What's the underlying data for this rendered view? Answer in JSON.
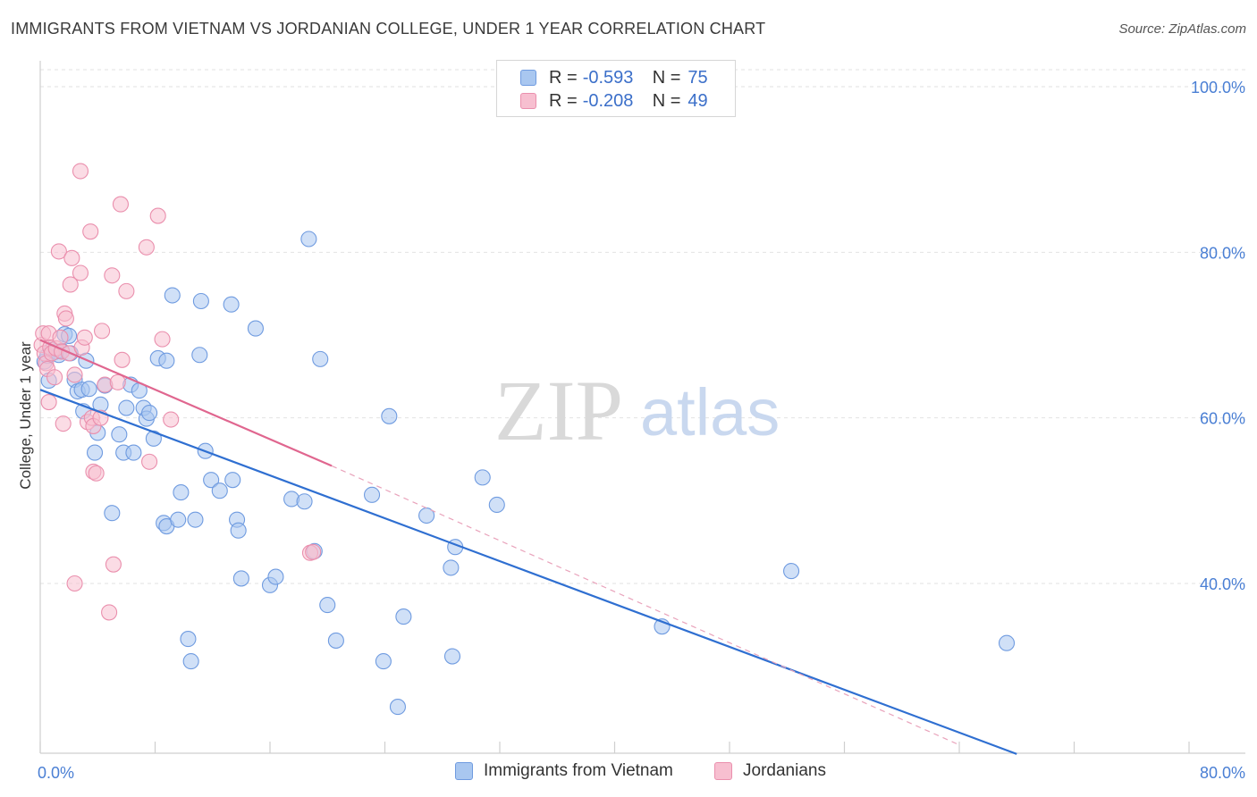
{
  "header": {
    "title": "IMMIGRANTS FROM VIETNAM VS JORDANIAN COLLEGE, UNDER 1 YEAR CORRELATION CHART",
    "source": "Source: ZipAtlas.com"
  },
  "watermark": {
    "zip": "ZIP",
    "atlas": "atlas"
  },
  "legend": {
    "rows": [
      {
        "r_label": "R =",
        "r_value": "-0.593",
        "n_label": "N =",
        "n_value": "75",
        "color": "#a9c7f0",
        "border": "#6f9be0"
      },
      {
        "r_label": "R =",
        "r_value": "-0.208",
        "n_label": "N =",
        "n_value": "49",
        "color": "#f7bfd0",
        "border": "#ea8fad"
      }
    ]
  },
  "bottom_legend": {
    "items": [
      {
        "label": "Immigrants from Vietnam",
        "color": "#a9c7f0",
        "border": "#6f9be0"
      },
      {
        "label": "Jordanians",
        "color": "#f7bfd0",
        "border": "#ea8fad"
      }
    ]
  },
  "chart_data": {
    "type": "scatter",
    "title": "IMMIGRANTS FROM VIETNAM VS JORDANIAN COLLEGE, UNDER 1 YEAR CORRELATION CHART",
    "xlabel": "",
    "ylabel": "College, Under 1 year",
    "xlim": [
      0,
      80
    ],
    "ylim": [
      20,
      104
    ],
    "x_tick_labels": [
      "0.0%",
      "80.0%"
    ],
    "y_ticks": [
      40,
      60,
      80,
      100
    ],
    "y_tick_labels": [
      "40.0%",
      "60.0%",
      "80.0%",
      "100.0%"
    ],
    "grid": true,
    "legend_position": "top-center",
    "colors": {
      "vietnam": "#6f9be0",
      "vietnam_line": "#2f6fd1",
      "jordan": "#ea8fad",
      "jordan_line": "#e0668f"
    },
    "series": [
      {
        "name": "Immigrants from Vietnam",
        "points": [
          [
            0.3,
            66.8
          ],
          [
            0.5,
            67.5
          ],
          [
            0.6,
            64.5
          ],
          [
            0.8,
            68.2
          ],
          [
            1.1,
            68.0
          ],
          [
            1.3,
            67.6
          ],
          [
            1.5,
            68.1
          ],
          [
            1.7,
            70.1
          ],
          [
            2.0,
            69.9
          ],
          [
            2.1,
            67.8
          ],
          [
            2.4,
            64.6
          ],
          [
            2.6,
            63.2
          ],
          [
            2.9,
            63.4
          ],
          [
            3.0,
            60.8
          ],
          [
            3.2,
            66.9
          ],
          [
            3.4,
            63.5
          ],
          [
            3.8,
            55.8
          ],
          [
            4.0,
            58.2
          ],
          [
            4.2,
            61.6
          ],
          [
            4.5,
            63.9
          ],
          [
            5.0,
            48.5
          ],
          [
            5.5,
            58.0
          ],
          [
            5.8,
            55.8
          ],
          [
            6.0,
            61.2
          ],
          [
            6.3,
            64.0
          ],
          [
            6.5,
            55.8
          ],
          [
            6.9,
            63.3
          ],
          [
            7.2,
            61.2
          ],
          [
            7.4,
            59.9
          ],
          [
            7.6,
            60.6
          ],
          [
            7.9,
            57.5
          ],
          [
            8.2,
            67.2
          ],
          [
            8.6,
            47.3
          ],
          [
            8.8,
            66.9
          ],
          [
            8.8,
            46.9
          ],
          [
            9.2,
            74.8
          ],
          [
            9.6,
            47.7
          ],
          [
            9.8,
            51.0
          ],
          [
            10.3,
            33.3
          ],
          [
            10.5,
            30.6
          ],
          [
            10.8,
            47.7
          ],
          [
            11.1,
            67.6
          ],
          [
            11.2,
            74.1
          ],
          [
            11.5,
            56.0
          ],
          [
            11.9,
            52.5
          ],
          [
            12.5,
            51.2
          ],
          [
            13.3,
            73.7
          ],
          [
            13.4,
            52.5
          ],
          [
            13.7,
            47.7
          ],
          [
            13.8,
            46.4
          ],
          [
            14.0,
            40.6
          ],
          [
            15.0,
            70.8
          ],
          [
            16.0,
            39.8
          ],
          [
            16.4,
            40.8
          ],
          [
            17.5,
            50.2
          ],
          [
            18.4,
            49.9
          ],
          [
            18.7,
            81.6
          ],
          [
            19.1,
            43.9
          ],
          [
            19.5,
            67.1
          ],
          [
            20.0,
            37.4
          ],
          [
            20.6,
            33.1
          ],
          [
            23.1,
            50.7
          ],
          [
            23.9,
            30.6
          ],
          [
            24.3,
            60.2
          ],
          [
            24.9,
            25.1
          ],
          [
            25.3,
            36.0
          ],
          [
            26.9,
            48.2
          ],
          [
            28.6,
            41.9
          ],
          [
            28.7,
            31.2
          ],
          [
            28.9,
            44.4
          ],
          [
            30.8,
            52.8
          ],
          [
            31.8,
            49.5
          ],
          [
            43.3,
            34.8
          ],
          [
            52.3,
            41.5
          ],
          [
            67.3,
            32.8
          ]
        ],
        "trend": {
          "x": [
            0,
            68
          ],
          "y": [
            63.4,
            19.4
          ]
        }
      },
      {
        "name": "Jordanians",
        "points": [
          [
            0.1,
            68.8
          ],
          [
            0.2,
            70.2
          ],
          [
            0.3,
            67.8
          ],
          [
            0.4,
            66.6
          ],
          [
            0.5,
            65.9
          ],
          [
            0.6,
            61.9
          ],
          [
            0.6,
            70.2
          ],
          [
            0.7,
            68.5
          ],
          [
            0.8,
            67.8
          ],
          [
            1.0,
            64.9
          ],
          [
            1.1,
            68.4
          ],
          [
            1.3,
            80.1
          ],
          [
            1.4,
            69.7
          ],
          [
            1.5,
            68.0
          ],
          [
            1.6,
            59.3
          ],
          [
            1.7,
            72.6
          ],
          [
            1.8,
            72.0
          ],
          [
            2.0,
            67.8
          ],
          [
            2.1,
            76.1
          ],
          [
            2.2,
            79.3
          ],
          [
            2.4,
            40.0
          ],
          [
            2.4,
            65.2
          ],
          [
            2.8,
            89.8
          ],
          [
            2.8,
            77.5
          ],
          [
            2.9,
            68.5
          ],
          [
            3.1,
            69.7
          ],
          [
            3.3,
            59.5
          ],
          [
            3.5,
            82.5
          ],
          [
            3.6,
            60.0
          ],
          [
            3.7,
            59.0
          ],
          [
            3.7,
            53.5
          ],
          [
            3.9,
            53.3
          ],
          [
            4.2,
            60.0
          ],
          [
            4.3,
            70.5
          ],
          [
            4.5,
            64.0
          ],
          [
            4.8,
            36.5
          ],
          [
            5.0,
            77.2
          ],
          [
            5.1,
            42.3
          ],
          [
            5.4,
            64.3
          ],
          [
            5.6,
            85.8
          ],
          [
            5.7,
            67.0
          ],
          [
            6.0,
            75.3
          ],
          [
            7.4,
            80.6
          ],
          [
            7.6,
            54.7
          ],
          [
            8.2,
            84.4
          ],
          [
            8.5,
            69.5
          ],
          [
            9.1,
            59.8
          ],
          [
            18.8,
            43.7
          ],
          [
            19.0,
            43.8
          ]
        ],
        "trend": {
          "x": [
            0,
            20.3
          ],
          "y": [
            69.4,
            54.2
          ]
        },
        "trend_extension": {
          "x": [
            20.3,
            64
          ],
          "y": [
            54.2,
            20.5
          ]
        }
      }
    ]
  }
}
